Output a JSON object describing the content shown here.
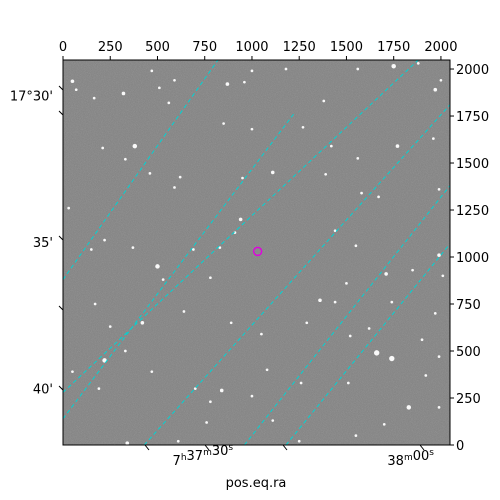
{
  "chart_data": {
    "type": "scatter",
    "title": "",
    "xlabel": "pos.eq.ra",
    "ylabel": "",
    "pixel_axes": {
      "x": {
        "range": [
          0,
          2048
        ],
        "ticks": [
          0,
          250,
          500,
          750,
          1000,
          1250,
          1500,
          1750,
          2000
        ],
        "position": "top"
      },
      "y": {
        "range": [
          0,
          2048
        ],
        "ticks": [
          0,
          250,
          500,
          750,
          1000,
          1250,
          1500,
          1750,
          2000
        ],
        "position": "right"
      }
    },
    "world_axes": {
      "ra": {
        "labels": [
          {
            "h": "7",
            "m": "37",
            "s": "30",
            "x_pix": 740
          },
          {
            "h": "",
            "m": "38",
            "s": "00",
            "x_pix": 1840
          }
        ],
        "position": "bottom"
      },
      "dec": {
        "labels": [
          {
            "text": "17°30'",
            "y_pix": 1860
          },
          {
            "text": "35'",
            "y_pix": 1080
          },
          {
            "text": "40'",
            "y_pix": 300
          }
        ],
        "position": "left"
      }
    },
    "grid": true,
    "grid_color": "#00d4d4",
    "image_background": "#7f7f7f",
    "marker": {
      "type": "circle",
      "color": "#e000e0",
      "x": 1030,
      "y": 1030
    },
    "grid_lines": {
      "dec_lines": [
        {
          "from": [
            0,
            880
          ],
          "to": [
            820,
            2048
          ]
        },
        {
          "from": [
            0,
            140
          ],
          "to": [
            1220,
            1760
          ],
          "note": ""
        },
        {
          "from": [
            960,
            0
          ],
          "to": [
            2048,
            1380
          ]
        }
      ],
      "ra_lines": [
        {
          "from": [
            0,
            280
          ],
          "to": [
            1880,
            2048
          ]
        },
        {
          "from": [
            430,
            0
          ],
          "to": [
            2048,
            1810
          ]
        },
        {
          "from": [
            1180,
            0
          ],
          "to": [
            2048,
            1070
          ]
        }
      ]
    },
    "stars": [
      [
        50,
        1935,
        2
      ],
      [
        70,
        1890,
        1.5
      ],
      [
        165,
        1845,
        1.5
      ],
      [
        320,
        1870,
        2
      ],
      [
        470,
        1990,
        1.5
      ],
      [
        510,
        1900,
        1.5
      ],
      [
        560,
        1820,
        1.5
      ],
      [
        590,
        1940,
        1.5
      ],
      [
        870,
        1920,
        2
      ],
      [
        960,
        1930,
        1.5
      ],
      [
        1000,
        1990,
        1.5
      ],
      [
        1000,
        1680,
        1.5
      ],
      [
        1180,
        2000,
        1.5
      ],
      [
        1270,
        1690,
        1.5
      ],
      [
        1380,
        1830,
        1.5
      ],
      [
        1560,
        2000,
        1.5
      ],
      [
        1750,
        2015,
        2.5
      ],
      [
        1880,
        2030,
        1.5
      ],
      [
        1970,
        1890,
        2
      ],
      [
        2000,
        1940,
        1.5
      ],
      [
        210,
        1580,
        1.5
      ],
      [
        380,
        1590,
        2.5
      ],
      [
        330,
        1520,
        1.5
      ],
      [
        460,
        1445,
        1.5
      ],
      [
        590,
        1370,
        1.5
      ],
      [
        620,
        1425,
        1.5
      ],
      [
        850,
        1710,
        1.5
      ],
      [
        950,
        1420,
        1.5
      ],
      [
        1110,
        1450,
        2
      ],
      [
        1390,
        1440,
        1.5
      ],
      [
        1420,
        1590,
        1.5
      ],
      [
        1560,
        1525,
        1.5
      ],
      [
        1580,
        1340,
        1.5
      ],
      [
        1670,
        1320,
        1.5
      ],
      [
        1770,
        1590,
        2
      ],
      [
        1960,
        1630,
        1.5
      ],
      [
        1990,
        1360,
        1.5
      ],
      [
        30,
        1260,
        1.5
      ],
      [
        150,
        1040,
        1.5
      ],
      [
        220,
        1090,
        1.5
      ],
      [
        370,
        1050,
        1.5
      ],
      [
        500,
        950,
        2.5
      ],
      [
        690,
        1040,
        1.5
      ],
      [
        780,
        890,
        1.5
      ],
      [
        830,
        1050,
        1.5
      ],
      [
        910,
        1130,
        1.5
      ],
      [
        940,
        1200,
        2
      ],
      [
        1440,
        1140,
        1.5
      ],
      [
        1550,
        1060,
        1.5
      ],
      [
        1710,
        910,
        2
      ],
      [
        1850,
        930,
        1.5
      ],
      [
        1990,
        1010,
        2
      ],
      [
        2010,
        900,
        1.5
      ],
      [
        1500,
        860,
        1.5
      ],
      [
        1440,
        760,
        1.5
      ],
      [
        170,
        750,
        1.5
      ],
      [
        250,
        630,
        1.5
      ],
      [
        420,
        650,
        2
      ],
      [
        530,
        880,
        1.5
      ],
      [
        640,
        710,
        1.5
      ],
      [
        890,
        650,
        1.5
      ],
      [
        1050,
        590,
        1.5
      ],
      [
        1360,
        770,
        2
      ],
      [
        1290,
        650,
        1.5
      ],
      [
        1520,
        580,
        1.5
      ],
      [
        1620,
        620,
        1.5
      ],
      [
        1740,
        760,
        1.5
      ],
      [
        1900,
        560,
        1.5
      ],
      [
        1970,
        700,
        1.5
      ],
      [
        220,
        450,
        2.5
      ],
      [
        330,
        500,
        1.5
      ],
      [
        50,
        390,
        1.5
      ],
      [
        190,
        300,
        1.5
      ],
      [
        470,
        390,
        1.5
      ],
      [
        700,
        300,
        1.5
      ],
      [
        760,
        120,
        1.5
      ],
      [
        840,
        290,
        2
      ],
      [
        780,
        230,
        1.5
      ],
      [
        1000,
        260,
        1.5
      ],
      [
        1110,
        130,
        1.5
      ],
      [
        1080,
        400,
        1.5
      ],
      [
        1260,
        330,
        1.5
      ],
      [
        1510,
        330,
        1.5
      ],
      [
        1660,
        490,
        3
      ],
      [
        1740,
        460,
        3
      ],
      [
        1830,
        200,
        2.5
      ],
      [
        1920,
        370,
        1.5
      ],
      [
        1990,
        470,
        1.5
      ],
      [
        1550,
        50,
        1.5
      ],
      [
        1700,
        110,
        1.5
      ],
      [
        340,
        10,
        2
      ],
      [
        610,
        20,
        1.5
      ],
      [
        1250,
        20,
        1.5
      ],
      [
        1990,
        200,
        1.5
      ]
    ]
  }
}
